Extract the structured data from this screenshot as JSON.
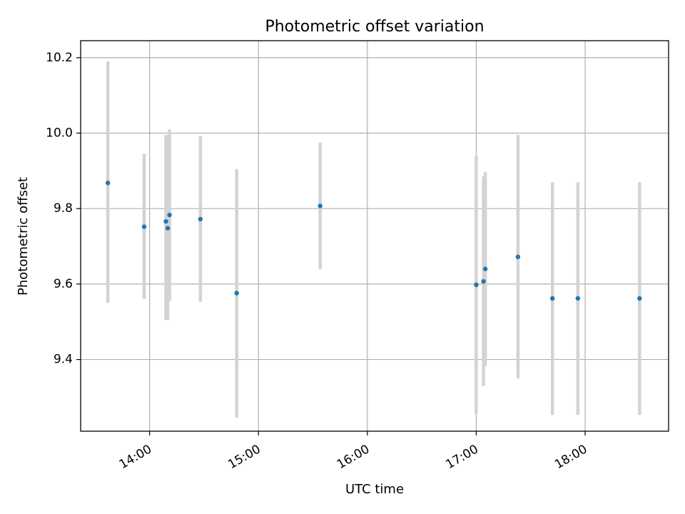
{
  "chart_data": {
    "type": "scatter",
    "title": "Photometric offset variation",
    "xlabel": "UTC time",
    "ylabel": "Photometric offset",
    "x_unit": "UTC time (HH:MM)",
    "x_ticks": [
      "14:00",
      "15:00",
      "16:00",
      "17:00",
      "18:00"
    ],
    "y_ticks": [
      "9.4",
      "9.6",
      "9.8",
      "10.0",
      "10.2"
    ],
    "xlim": [
      "13:22",
      "18:46"
    ],
    "ylim": [
      9.21,
      10.245
    ],
    "grid": true,
    "colors": {
      "point": "#1f77b4",
      "errorbar": "#d3d3d3",
      "grid": "#b0b0b0",
      "axes": "#000000"
    },
    "series": [
      {
        "points": [
          {
            "x": "13:37",
            "y": 9.868,
            "y_low": 9.55,
            "y_high": 10.19
          },
          {
            "x": "13:57",
            "y": 9.752,
            "y_low": 9.56,
            "y_high": 9.945
          },
          {
            "x": "14:09",
            "y": 9.766,
            "y_low": 9.505,
            "y_high": 9.995
          },
          {
            "x": "14:10",
            "y": 9.748,
            "y_low": 9.505,
            "y_high": 9.995
          },
          {
            "x": "14:11",
            "y": 9.783,
            "y_low": 9.555,
            "y_high": 10.01
          },
          {
            "x": "14:28",
            "y": 9.772,
            "y_low": 9.553,
            "y_high": 9.992
          },
          {
            "x": "14:48",
            "y": 9.576,
            "y_low": 9.246,
            "y_high": 9.905
          },
          {
            "x": "15:34",
            "y": 9.807,
            "y_low": 9.64,
            "y_high": 9.975
          },
          {
            "x": "17:00",
            "y": 9.598,
            "y_low": 9.256,
            "y_high": 9.94
          },
          {
            "x": "17:04",
            "y": 9.607,
            "y_low": 9.33,
            "y_high": 9.885
          },
          {
            "x": "17:05",
            "y": 9.64,
            "y_low": 9.383,
            "y_high": 9.897
          },
          {
            "x": "17:23",
            "y": 9.672,
            "y_low": 9.35,
            "y_high": 9.995
          },
          {
            "x": "17:42",
            "y": 9.562,
            "y_low": 9.253,
            "y_high": 9.87
          },
          {
            "x": "17:56",
            "y": 9.562,
            "y_low": 9.253,
            "y_high": 9.87
          },
          {
            "x": "18:30",
            "y": 9.562,
            "y_low": 9.253,
            "y_high": 9.87
          }
        ]
      }
    ]
  }
}
